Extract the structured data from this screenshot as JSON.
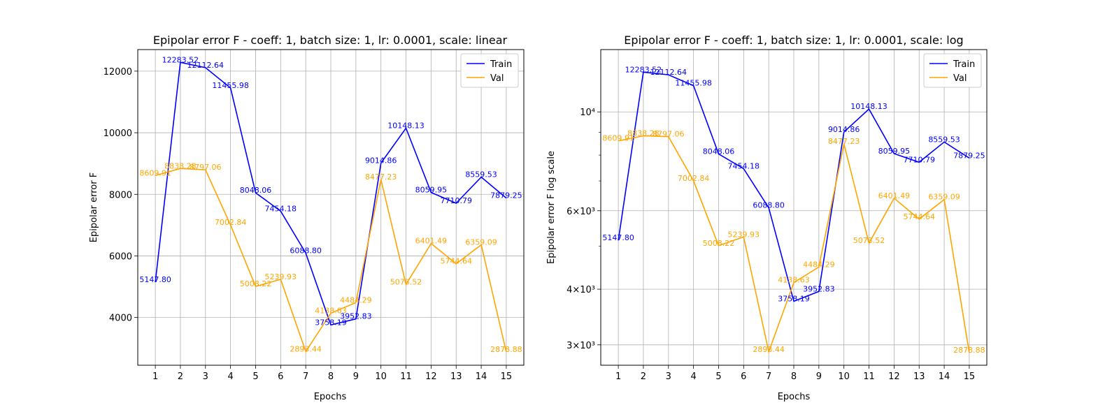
{
  "chart_data": [
    {
      "type": "line",
      "title": "Epipolar error F - coeff: 1, batch size: 1, lr: 0.0001, scale: linear",
      "xlabel": "Epochs",
      "ylabel": "Epipolar error F",
      "yscale": "linear",
      "x": [
        1,
        2,
        3,
        4,
        5,
        6,
        7,
        8,
        9,
        10,
        11,
        12,
        13,
        14,
        15
      ],
      "xlim": [
        0.3,
        15.7
      ],
      "ylim": [
        2450,
        12700
      ],
      "yticks": [
        4000,
        6000,
        8000,
        10000,
        12000
      ],
      "ytick_labels": [
        "4000",
        "6000",
        "8000",
        "10000",
        "12000"
      ],
      "grid": true,
      "legend": "top-right",
      "series": [
        {
          "name": "Train",
          "color": "#0000ff",
          "values": [
            5147.8,
            12283.52,
            12112.64,
            11455.98,
            8048.06,
            7454.18,
            6088.8,
            3758.19,
            3952.83,
            9014.86,
            10148.13,
            8059.95,
            7710.79,
            8559.53,
            7879.25
          ],
          "labels": [
            "5147.80",
            "12283.52",
            "12112.64",
            "11455.98",
            "8048.06",
            "7454.18",
            "6088.80",
            "3758.19",
            "3952.83",
            "9014.86",
            "10148.13",
            "8059.95",
            "7710.79",
            "8559.53",
            "7879.25"
          ]
        },
        {
          "name": "Val",
          "color": "#ffa500",
          "values": [
            8609.91,
            8838.28,
            8797.06,
            7002.84,
            5008.22,
            5239.93,
            2893.44,
            4138.63,
            4484.29,
            8477.23,
            5073.52,
            6401.49,
            5744.64,
            6359.09,
            2878.88
          ],
          "labels": [
            "8609.91",
            "8838.28",
            "8797.06",
            "7002.84",
            "5008.22",
            "5239.93",
            "2893.44",
            "4138.63",
            "4484.29",
            "8477.23",
            "5073.52",
            "6401.49",
            "5744.64",
            "6359.09",
            "2878.88"
          ]
        }
      ]
    },
    {
      "type": "line",
      "title": "Epipolar error F - coeff: 1, batch size: 1, lr: 0.0001, scale: log",
      "xlabel": "Epochs",
      "ylabel": "Epipolar error F log scale",
      "yscale": "log",
      "x": [
        1,
        2,
        3,
        4,
        5,
        6,
        7,
        8,
        9,
        10,
        11,
        12,
        13,
        14,
        15
      ],
      "xlim": [
        0.3,
        15.7
      ],
      "ylim": [
        2700,
        13800
      ],
      "yticks": [
        3000,
        4000,
        6000,
        10000
      ],
      "ytick_labels": [
        "3×10³",
        "4×10³",
        "6×10³",
        "10⁴"
      ],
      "grid": true,
      "legend": "top-right",
      "series": [
        {
          "name": "Train",
          "color": "#0000ff",
          "values": [
            5147.8,
            12283.52,
            12112.64,
            11455.98,
            8048.06,
            7454.18,
            6088.8,
            3758.19,
            3952.83,
            9014.86,
            10148.13,
            8059.95,
            7710.79,
            8559.53,
            7879.25
          ],
          "labels": [
            "5147.80",
            "12283.52",
            "12112.64",
            "11455.98",
            "8048.06",
            "7454.18",
            "6088.80",
            "3758.19",
            "3952.83",
            "9014.86",
            "10148.13",
            "8059.95",
            "7710.79",
            "8559.53",
            "7879.25"
          ]
        },
        {
          "name": "Val",
          "color": "#ffa500",
          "values": [
            8609.91,
            8838.28,
            8797.06,
            7002.84,
            5008.22,
            5239.93,
            2893.44,
            4138.63,
            4484.29,
            8477.23,
            5073.52,
            6401.49,
            5744.64,
            6359.09,
            2878.88
          ],
          "labels": [
            "8609.91",
            "8838.28",
            "8797.06",
            "7002.84",
            "5008.22",
            "5239.93",
            "2893.44",
            "4138.63",
            "4484.29",
            "8477.23",
            "5073.52",
            "6401.49",
            "5744.64",
            "6359.09",
            "2878.88"
          ]
        }
      ]
    }
  ]
}
